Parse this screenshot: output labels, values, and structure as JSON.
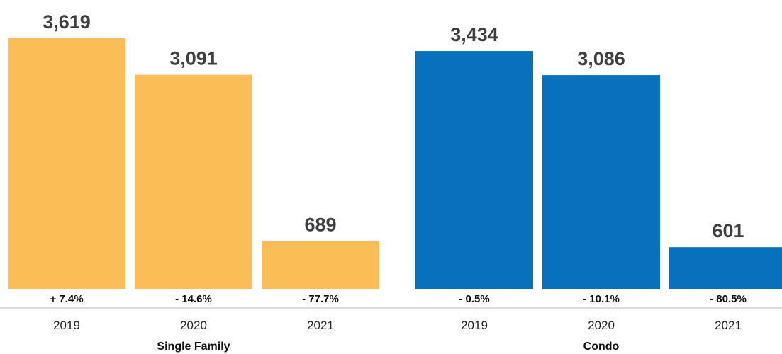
{
  "chart_data": {
    "type": "bar",
    "ylim": [
      0,
      3800
    ],
    "grid": false,
    "groups": [
      {
        "name": "Single Family",
        "color": "#fbbd55",
        "categories": [
          "2019",
          "2020",
          "2021"
        ],
        "values": [
          3619,
          3091,
          689
        ],
        "value_labels": [
          "3,619",
          "3,091",
          "689"
        ],
        "pct_changes": [
          "+ 7.4%",
          "- 14.6%",
          "- 77.7%"
        ]
      },
      {
        "name": "Condo",
        "color": "#0871bd",
        "categories": [
          "2019",
          "2020",
          "2021"
        ],
        "values": [
          3434,
          3086,
          601
        ],
        "value_labels": [
          "3,434",
          "3,086",
          "601"
        ],
        "pct_changes": [
          "- 0.5%",
          "- 10.1%",
          "- 80.5%"
        ]
      }
    ]
  },
  "colors": {
    "axis_line": "#cfcfcf",
    "value_text": "#3f3f3f"
  }
}
